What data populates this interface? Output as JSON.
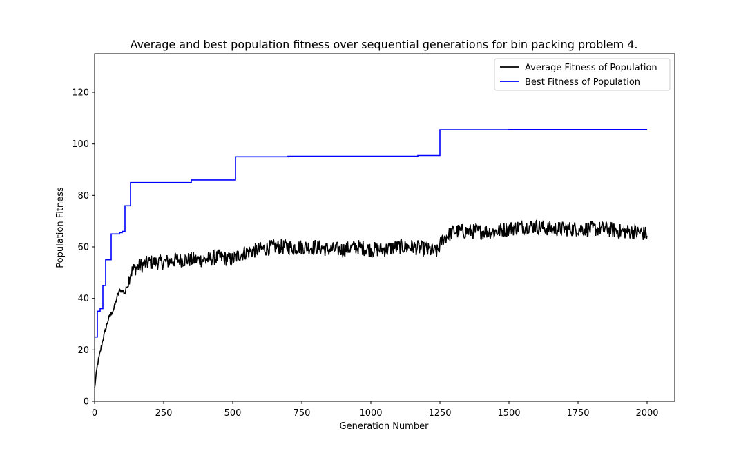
{
  "chart_data": {
    "type": "line",
    "title": "Average and best population fitness over sequential generations for bin packing problem 4.",
    "xlabel": "Generation Number",
    "ylabel": "Population Fitness",
    "xlim": [
      0,
      2100
    ],
    "ylim": [
      0,
      135
    ],
    "xticks": [
      0,
      250,
      500,
      750,
      1000,
      1250,
      1500,
      1750,
      2000
    ],
    "yticks": [
      0,
      20,
      40,
      60,
      80,
      100,
      120
    ],
    "legend_position": "top-right",
    "grid": false,
    "series": [
      {
        "name": "Average Fitness of Population",
        "color": "#000000",
        "x": [
          0,
          10,
          20,
          30,
          40,
          50,
          60,
          70,
          80,
          90,
          100,
          110,
          120,
          130,
          140,
          150,
          175,
          200,
          250,
          300,
          350,
          400,
          450,
          500,
          525,
          550,
          600,
          650,
          700,
          750,
          800,
          850,
          900,
          950,
          1000,
          1050,
          1100,
          1150,
          1200,
          1240,
          1260,
          1300,
          1350,
          1400,
          1450,
          1500,
          1550,
          1600,
          1650,
          1700,
          1750,
          1800,
          1850,
          1900,
          1950,
          2000
        ],
        "values": [
          5,
          14,
          19,
          24,
          28,
          32,
          34,
          36,
          40,
          43,
          43,
          42,
          46,
          50,
          51,
          52,
          53,
          54,
          54,
          55,
          55,
          55,
          56,
          55,
          57,
          58,
          59,
          60,
          60,
          60,
          60,
          59,
          59,
          60,
          59,
          59,
          60,
          60,
          59,
          58,
          63,
          66,
          66,
          66,
          66,
          67,
          68,
          68,
          67,
          67,
          67,
          67,
          67,
          66,
          66,
          65
        ],
        "noise_amplitude": 3
      },
      {
        "name": "Best Fitness of Population",
        "color": "#0000ff",
        "x": [
          0,
          10,
          20,
          30,
          40,
          60,
          90,
          100,
          110,
          120,
          130,
          350,
          510,
          700,
          1170,
          1250,
          1500,
          2000
        ],
        "values": [
          25,
          35,
          36,
          45,
          55,
          65,
          65.5,
          66,
          76,
          76,
          85,
          86,
          95,
          95.2,
          95.5,
          105.5,
          105.6,
          105.6
        ],
        "step": true
      }
    ]
  }
}
